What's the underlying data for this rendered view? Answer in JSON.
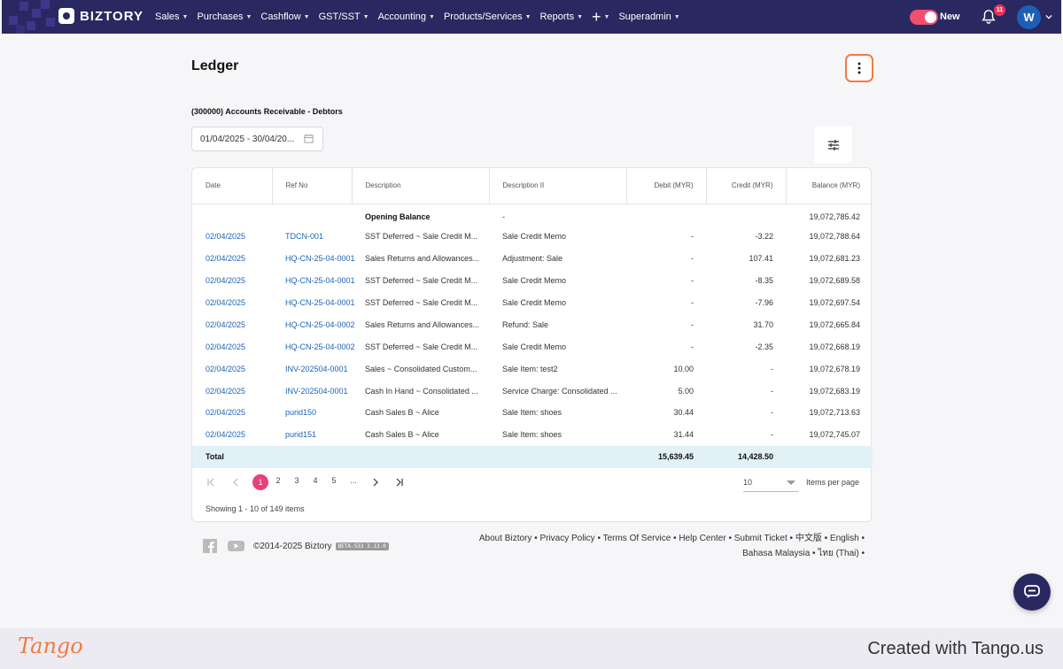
{
  "brand": {
    "name": "BIZTORY"
  },
  "nav": {
    "items": [
      {
        "label": "Sales",
        "caret": true
      },
      {
        "label": "Purchases",
        "caret": true
      },
      {
        "label": "Cashflow",
        "caret": true
      },
      {
        "label": "GST/SST",
        "caret": true
      },
      {
        "label": "Accounting",
        "caret": true
      },
      {
        "label": "Products/Services",
        "caret": true
      },
      {
        "label": "Reports",
        "caret": true
      },
      {
        "label": "+",
        "caret": true
      },
      {
        "label": "Superadmin",
        "caret": true
      }
    ],
    "toggle_label": "New",
    "toggle_on": true,
    "notification_count": "11",
    "avatar_initial": "W"
  },
  "page": {
    "title": "Ledger",
    "account": "(300000) Accounts Receivable - Debtors",
    "date_range": "01/04/2025 - 30/04/20..."
  },
  "table": {
    "columns": [
      "Date",
      "Ref No",
      "Description",
      "Description II",
      "Debit (MYR)",
      "Credit (MYR)",
      "Balance (MYR)"
    ],
    "opening": {
      "description": "Opening Balance",
      "description2": "-",
      "balance": "19,072,785.42"
    },
    "rows": [
      {
        "date": "02/04/2025",
        "ref": "TDCN-001",
        "desc": "SST Deferred ~ Sale Credit M...",
        "desc2": "Sale Credit Memo",
        "debit": "-",
        "credit": "-3.22",
        "balance": "19,072,788.64"
      },
      {
        "date": "02/04/2025",
        "ref": "HQ-CN-25-04-0001",
        "desc": "Sales Returns and Allowances...",
        "desc2": "Adjustment: Sale",
        "debit": "-",
        "credit": "107.41",
        "balance": "19,072,681.23"
      },
      {
        "date": "02/04/2025",
        "ref": "HQ-CN-25-04-0001",
        "desc": "SST Deferred ~ Sale Credit M...",
        "desc2": "Sale Credit Memo",
        "debit": "-",
        "credit": "-8.35",
        "balance": "19,072,689.58"
      },
      {
        "date": "02/04/2025",
        "ref": "HQ-CN-25-04-0001",
        "desc": "SST Deferred ~ Sale Credit M...",
        "desc2": "Sale Credit Memo",
        "debit": "-",
        "credit": "-7.96",
        "balance": "19,072,697.54"
      },
      {
        "date": "02/04/2025",
        "ref": "HQ-CN-25-04-0002",
        "desc": "Sales Returns and Allowances...",
        "desc2": "Refund: Sale",
        "debit": "-",
        "credit": "31.70",
        "balance": "19,072,665.84"
      },
      {
        "date": "02/04/2025",
        "ref": "HQ-CN-25-04-0002",
        "desc": "SST Deferred ~ Sale Credit M...",
        "desc2": "Sale Credit Memo",
        "debit": "-",
        "credit": "-2.35",
        "balance": "19,072,668.19"
      },
      {
        "date": "02/04/2025",
        "ref": "INV-202504-0001",
        "desc": "Sales ~ Consolidated Custom...",
        "desc2": "Sale Item: test2",
        "debit": "10.00",
        "credit": "-",
        "balance": "19,072,678.19"
      },
      {
        "date": "02/04/2025",
        "ref": "INV-202504-0001",
        "desc": "Cash In Hand ~ Consolidated ...",
        "desc2": "Service Charge: Consolidated ...",
        "debit": "5.00",
        "credit": "-",
        "balance": "19,072,683.19"
      },
      {
        "date": "02/04/2025",
        "ref": "purid150",
        "desc": "Cash Sales B ~ Alice",
        "desc2": "Sale Item: shoes",
        "debit": "30.44",
        "credit": "-",
        "balance": "19,072,713.63"
      },
      {
        "date": "02/04/2025",
        "ref": "purid151",
        "desc": "Cash Sales B ~ Alice",
        "desc2": "Sale Item: shoes",
        "debit": "31.44",
        "credit": "-",
        "balance": "19,072,745.07"
      }
    ],
    "total": {
      "label": "Total",
      "debit": "15,639.45",
      "credit": "14,428.50"
    }
  },
  "pagination": {
    "pages": [
      "1",
      "2",
      "3",
      "4",
      "5",
      "..."
    ],
    "current": "1",
    "per_page": "10",
    "per_page_label": "Items per page",
    "showing": "Showing 1 - 10 of 149 items"
  },
  "footer": {
    "copyright": "©2014-2025 Biztory",
    "version": "BETA-533 3.13.0",
    "links_line1": [
      "About Biztory",
      "Privacy Policy",
      "Terms Of Service",
      "Help Center",
      "Submit Ticket",
      "中文版",
      "English"
    ],
    "links_line2": [
      "Bahasa Malaysia",
      "ไทย (Thai)"
    ]
  },
  "tango": {
    "logo": "Tango",
    "created": "Created with Tango.us"
  },
  "colors": {
    "nav_bg": "#2a2860",
    "accent_pink": "#e8407a",
    "highlight_orange": "#f27a43",
    "link": "#1b63b5",
    "total_bg": "#e1f1f7"
  }
}
